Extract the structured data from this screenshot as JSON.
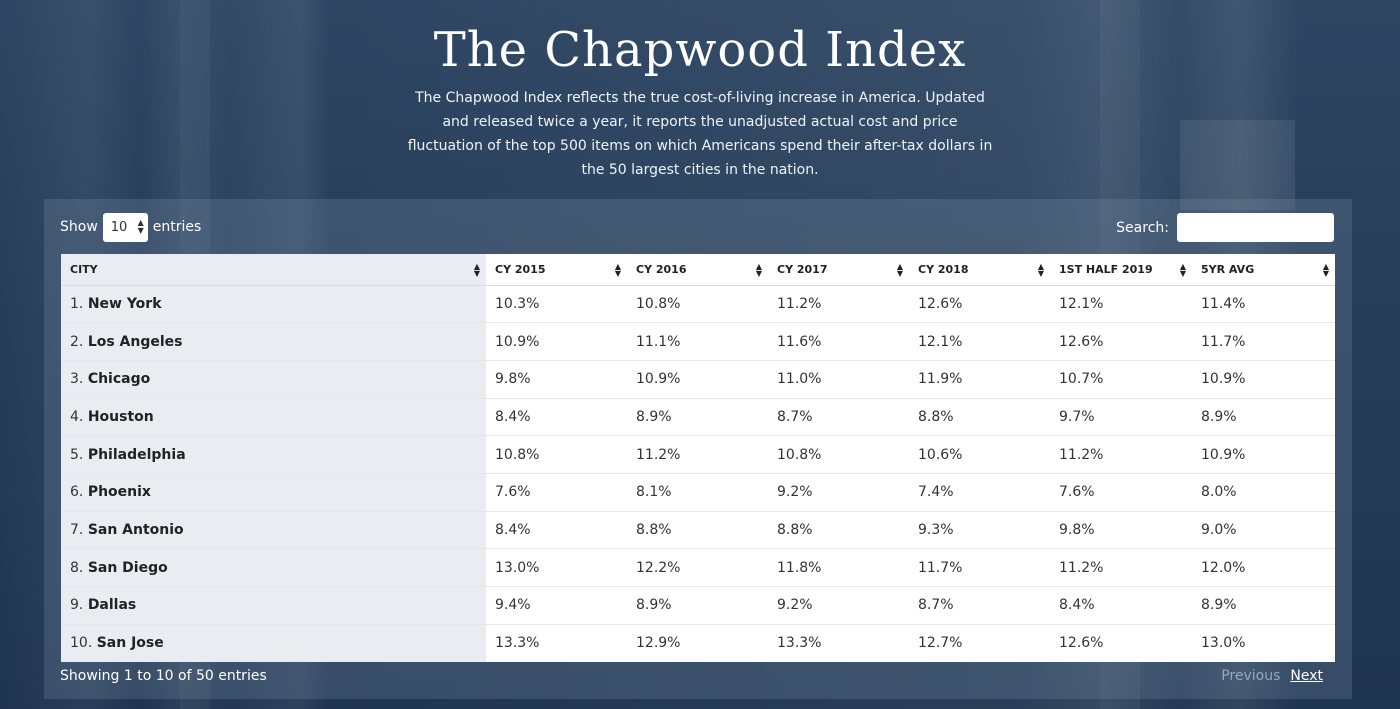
{
  "header": {
    "title": "The Chapwood Index",
    "subtitle": "The Chapwood Index reflects the true cost-of-living increase in America. Updated and released twice a year, it reports the unadjusted actual cost and price fluctuation of the top 500 items on which Americans spend their after-tax dollars in the 50 largest cities in the nation."
  },
  "controls": {
    "show_label": "Show",
    "entries_value": "10",
    "entries_label": "entries",
    "search_label": "Search:",
    "search_value": ""
  },
  "table": {
    "columns": [
      "City",
      "CY 2015",
      "CY 2016",
      "CY 2017",
      "CY 2018",
      "1st Half 2019",
      "5yr Avg"
    ],
    "rows": [
      {
        "rank": "1.",
        "city": "New York",
        "values": [
          "10.3%",
          "10.8%",
          "11.2%",
          "12.6%",
          "12.1%",
          "11.4%"
        ]
      },
      {
        "rank": "2.",
        "city": "Los Angeles",
        "values": [
          "10.9%",
          "11.1%",
          "11.6%",
          "12.1%",
          "12.6%",
          "11.7%"
        ]
      },
      {
        "rank": "3.",
        "city": "Chicago",
        "values": [
          "9.8%",
          "10.9%",
          "11.0%",
          "11.9%",
          "10.7%",
          "10.9%"
        ]
      },
      {
        "rank": "4.",
        "city": "Houston",
        "values": [
          "8.4%",
          "8.9%",
          "8.7%",
          "8.8%",
          "9.7%",
          "8.9%"
        ]
      },
      {
        "rank": "5.",
        "city": "Philadelphia",
        "values": [
          "10.8%",
          "11.2%",
          "10.8%",
          "10.6%",
          "11.2%",
          "10.9%"
        ]
      },
      {
        "rank": "6.",
        "city": "Phoenix",
        "values": [
          "7.6%",
          "8.1%",
          "9.2%",
          "7.4%",
          "7.6%",
          "8.0%"
        ]
      },
      {
        "rank": "7.",
        "city": "San Antonio",
        "values": [
          "8.4%",
          "8.8%",
          "8.8%",
          "9.3%",
          "9.8%",
          "9.0%"
        ]
      },
      {
        "rank": "8.",
        "city": "San Diego",
        "values": [
          "13.0%",
          "12.2%",
          "11.8%",
          "11.7%",
          "11.2%",
          "12.0%"
        ]
      },
      {
        "rank": "9.",
        "city": "Dallas",
        "values": [
          "9.4%",
          "8.9%",
          "9.2%",
          "8.7%",
          "8.4%",
          "8.9%"
        ]
      },
      {
        "rank": "10.",
        "city": "San Jose",
        "values": [
          "13.3%",
          "12.9%",
          "13.3%",
          "12.7%",
          "12.6%",
          "13.0%"
        ]
      }
    ]
  },
  "footer": {
    "info": "Showing 1 to 10 of 50 entries",
    "previous": "Previous",
    "next": "Next"
  }
}
